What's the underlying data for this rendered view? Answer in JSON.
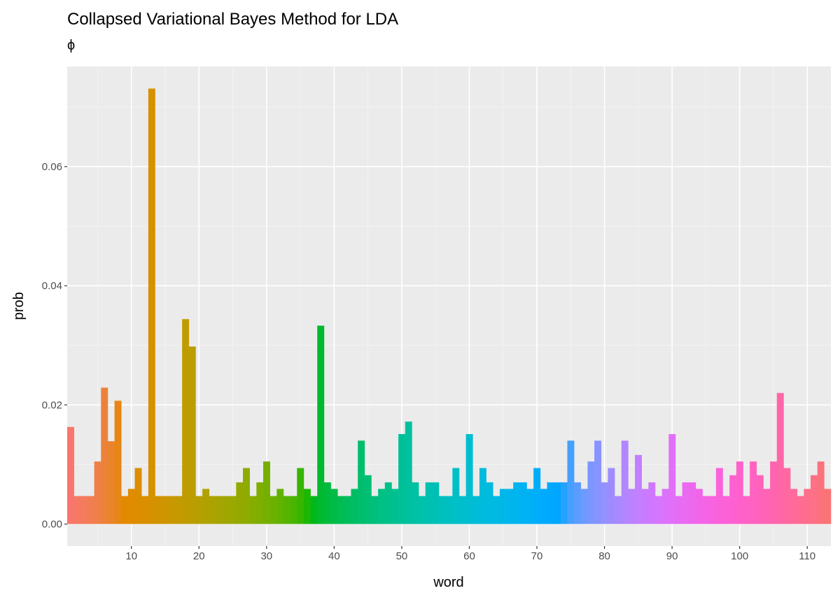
{
  "chart_data": {
    "type": "bar",
    "title": "Collapsed Variational Bayes Method for LDA",
    "subtitle": "ϕ",
    "xlabel": "word",
    "ylabel": "prob",
    "xlim": [
      0.5,
      113.5
    ],
    "ylim": [
      -0.0037,
      0.0768
    ],
    "xticks": [
      10,
      20,
      30,
      40,
      50,
      60,
      70,
      80,
      90,
      100,
      110
    ],
    "yticks": [
      0,
      0.02,
      0.04,
      0.06
    ],
    "ytick_labels": [
      "0.00",
      "0.02",
      "0.04",
      "0.06"
    ],
    "grid": true,
    "fill": "hue gradient by word",
    "x": [
      1,
      2,
      3,
      4,
      5,
      6,
      7,
      8,
      9,
      10,
      11,
      12,
      13,
      14,
      15,
      16,
      17,
      18,
      19,
      20,
      21,
      22,
      23,
      24,
      25,
      26,
      27,
      28,
      29,
      30,
      31,
      32,
      33,
      34,
      35,
      36,
      37,
      38,
      39,
      40,
      41,
      42,
      43,
      44,
      45,
      46,
      47,
      48,
      49,
      50,
      51,
      52,
      53,
      54,
      55,
      56,
      57,
      58,
      59,
      60,
      61,
      62,
      63,
      64,
      65,
      66,
      67,
      68,
      69,
      70,
      71,
      72,
      73,
      74,
      75,
      76,
      77,
      78,
      79,
      80,
      81,
      82,
      83,
      84,
      85,
      86,
      87,
      88,
      89,
      90,
      91,
      92,
      93,
      94,
      95,
      96,
      97,
      98,
      99,
      100,
      101,
      102,
      103,
      104,
      105,
      106,
      107,
      108,
      109,
      110,
      111,
      112,
      113
    ],
    "values": [
      0.0163,
      0.0047,
      0.0047,
      0.0047,
      0.0105,
      0.0229,
      0.0139,
      0.0207,
      0.0047,
      0.0059,
      0.0094,
      0.0047,
      0.0731,
      0.0047,
      0.0047,
      0.0047,
      0.0047,
      0.0344,
      0.0298,
      0.0047,
      0.0059,
      0.0047,
      0.0047,
      0.0047,
      0.0047,
      0.007,
      0.0094,
      0.0047,
      0.007,
      0.0105,
      0.0047,
      0.0059,
      0.0047,
      0.0047,
      0.0094,
      0.0059,
      0.0047,
      0.0333,
      0.007,
      0.0059,
      0.0047,
      0.0047,
      0.0059,
      0.014,
      0.0082,
      0.0047,
      0.0059,
      0.007,
      0.0059,
      0.0151,
      0.0172,
      0.007,
      0.0047,
      0.007,
      0.007,
      0.0047,
      0.0047,
      0.0094,
      0.0047,
      0.0151,
      0.0047,
      0.0094,
      0.007,
      0.0047,
      0.0059,
      0.0059,
      0.007,
      0.007,
      0.0059,
      0.0094,
      0.0059,
      0.007,
      0.007,
      0.007,
      0.014,
      0.007,
      0.0059,
      0.0105,
      0.014,
      0.007,
      0.0094,
      0.0047,
      0.014,
      0.0059,
      0.0116,
      0.0059,
      0.007,
      0.0047,
      0.0059,
      0.0151,
      0.0047,
      0.007,
      0.007,
      0.0059,
      0.0047,
      0.0047,
      0.0094,
      0.0047,
      0.0082,
      0.0105,
      0.0047,
      0.0105,
      0.0082,
      0.0059,
      0.0105,
      0.022,
      0.0094,
      0.0059,
      0.0047,
      0.0059,
      0.0082,
      0.0105,
      0.0059
    ]
  }
}
